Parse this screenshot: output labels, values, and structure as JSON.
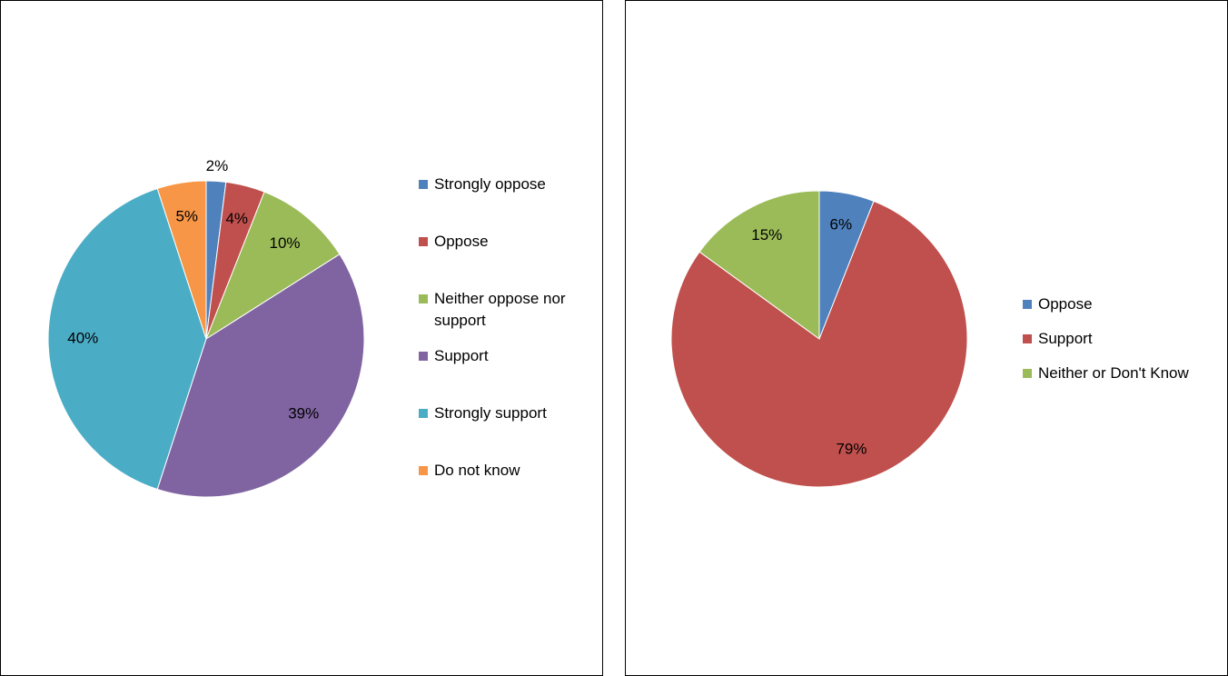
{
  "chart_data": [
    {
      "type": "pie",
      "legend": "right",
      "categories": [
        "Strongly oppose",
        "Oppose",
        "Neither oppose nor support",
        "Support",
        "Strongly support",
        "Do not know"
      ],
      "values": [
        2,
        4,
        10,
        39,
        40,
        5
      ],
      "value_labels": [
        "2%",
        "4%",
        "10%",
        "39%",
        "40%",
        "5%"
      ],
      "colors": [
        "#4f81bd",
        "#c0504d",
        "#9bbb59",
        "#8064a2",
        "#4bacc6",
        "#f79646"
      ]
    },
    {
      "type": "pie",
      "legend": "right",
      "categories": [
        "Oppose",
        "Support",
        "Neither or Don't Know"
      ],
      "values": [
        6,
        79,
        15
      ],
      "value_labels": [
        "6%",
        "79%",
        "15%"
      ],
      "colors": [
        "#4f81bd",
        "#c0504d",
        "#9bbb59"
      ]
    }
  ]
}
